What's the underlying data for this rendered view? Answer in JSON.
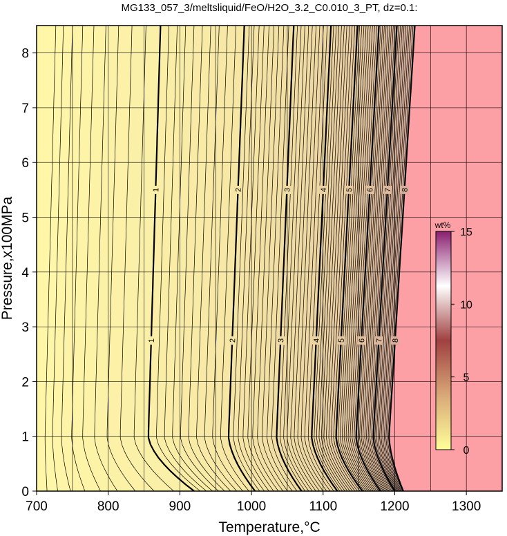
{
  "chart_data": {
    "type": "contour",
    "title": "MG133_057_3/meltsliquid/FeO/H2O_3.2_C0.010_3_PT, dz=0.1:",
    "xlabel": "Temperature,°C",
    "ylabel": "Pressure,x100MPa",
    "xlim": [
      700,
      1350
    ],
    "ylim": [
      0,
      8.5
    ],
    "x_ticks": [
      "700",
      "800",
      "900",
      "1000",
      "1100",
      "1200",
      "1300"
    ],
    "y_ticks": [
      "0",
      "1",
      "2",
      "3",
      "4",
      "5",
      "6",
      "7",
      "8"
    ],
    "grid": true,
    "contour_interval": 0.1,
    "major_contours": [
      {
        "level": 1,
        "label": "1",
        "temp_at_0": 920,
        "temp_at_1": 856,
        "temp_at_top": 873
      },
      {
        "level": 2,
        "label": "2",
        "temp_at_0": 1005,
        "temp_at_1": 968,
        "temp_at_top": 990
      },
      {
        "level": 3,
        "label": "3",
        "temp_at_0": 1070,
        "temp_at_1": 1035,
        "temp_at_top": 1059
      },
      {
        "level": 4,
        "label": "4",
        "temp_at_0": 1120,
        "temp_at_1": 1084,
        "temp_at_top": 1111
      },
      {
        "level": 5,
        "label": "5",
        "temp_at_0": 1155,
        "temp_at_1": 1118,
        "temp_at_top": 1148
      },
      {
        "level": 6,
        "label": "6",
        "temp_at_0": 1180,
        "temp_at_1": 1146,
        "temp_at_top": 1178
      },
      {
        "level": 7,
        "label": "7",
        "temp_at_0": 1200,
        "temp_at_1": 1170,
        "temp_at_top": 1203
      },
      {
        "level": 8,
        "label": "8",
        "temp_at_0": 1212,
        "temp_at_1": 1192,
        "temp_at_top": 1228
      }
    ],
    "colorbar": {
      "unit": "wt%",
      "min": 0,
      "max": 15,
      "ticks": [
        "0",
        "5",
        "10",
        "15"
      ],
      "colors": [
        "#ffff99",
        "#d8a878",
        "#a04040",
        "#ffffff",
        "#8a2070"
      ]
    },
    "fill_colors": {
      "low": "#fff7a8",
      "high": "#fca0a6"
    }
  }
}
